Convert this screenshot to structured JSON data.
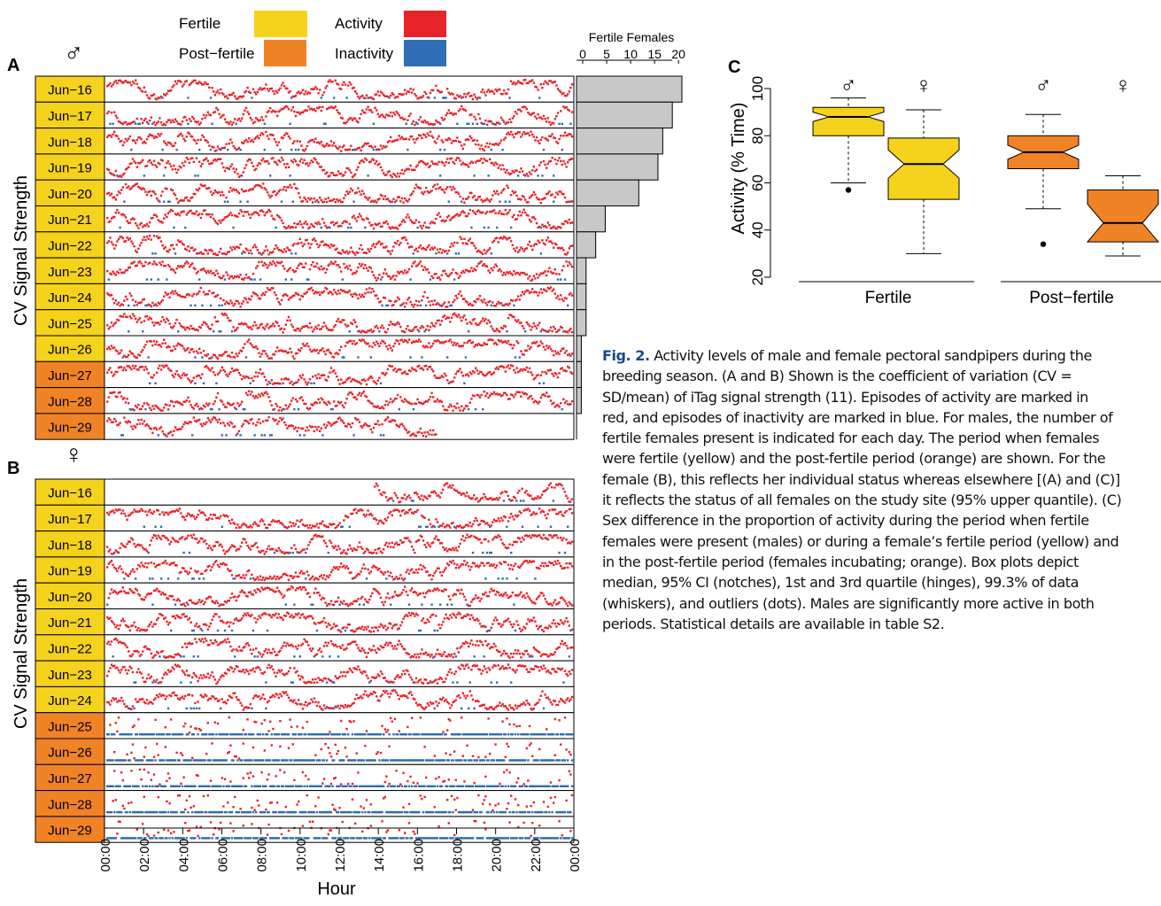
{
  "legend": {
    "fertile": "Fertile",
    "post_fertile": "Post−fertile",
    "activity": "Activity",
    "inactivity": "Inactivity",
    "colors": {
      "fertile": "#f5d21b",
      "post_fertile": "#f08326",
      "activity": "#e8232a",
      "inactivity": "#2f6db5"
    }
  },
  "panel_a": {
    "label": "A",
    "sex_symbol": "♂",
    "y_axis_label": "CV Signal Strength",
    "days": [
      "Jun−16",
      "Jun−17",
      "Jun−18",
      "Jun−19",
      "Jun−20",
      "Jun−21",
      "Jun−22",
      "Jun−23",
      "Jun−24",
      "Jun−25",
      "Jun−26",
      "Jun−27",
      "Jun−28",
      "Jun−29"
    ],
    "status": [
      "fertile",
      "fertile",
      "fertile",
      "fertile",
      "fertile",
      "fertile",
      "fertile",
      "fertile",
      "fertile",
      "fertile",
      "fertile",
      "post_fertile",
      "post_fertile",
      "post_fertile"
    ]
  },
  "fertile_females_chart": {
    "title": "Fertile Females",
    "ticks": [
      "0",
      "5",
      "10",
      "15",
      "20"
    ],
    "tick_values": [
      0,
      5,
      10,
      15,
      20
    ],
    "xlim": [
      0,
      22
    ],
    "values": [
      22,
      20,
      18,
      17,
      13,
      6,
      4,
      2,
      2,
      2,
      1,
      1,
      1,
      0
    ]
  },
  "panel_b": {
    "label": "B",
    "sex_symbol": "♀",
    "y_axis_label": "CV Signal Strength",
    "days": [
      "Jun−16",
      "Jun−17",
      "Jun−18",
      "Jun−19",
      "Jun−20",
      "Jun−21",
      "Jun−22",
      "Jun−23",
      "Jun−24",
      "Jun−25",
      "Jun−26",
      "Jun−27",
      "Jun−28",
      "Jun−29"
    ],
    "status": [
      "fertile",
      "fertile",
      "fertile",
      "fertile",
      "fertile",
      "fertile",
      "fertile",
      "fertile",
      "fertile",
      "post_fertile",
      "post_fertile",
      "post_fertile",
      "post_fertile",
      "post_fertile"
    ],
    "x_axis_label": "Hour",
    "hour_ticks": [
      "00:00",
      "02:00",
      "04:00",
      "06:00",
      "08:00",
      "10:00",
      "12:00",
      "14:00",
      "16:00",
      "18:00",
      "20:00",
      "22:00",
      "00:00"
    ]
  },
  "chart_data": {
    "type": "box",
    "label": "C",
    "ylabel": "Activity (% Time)",
    "yticks": [
      "20",
      "40",
      "60",
      "80",
      "100"
    ],
    "ylim": [
      20,
      100
    ],
    "groups": [
      "Fertile",
      "Post−fertile"
    ],
    "boxes": [
      {
        "group": "Fertile",
        "sex": "♂",
        "color": "#f5d21b",
        "whisker_low": 60,
        "q1": 80,
        "median": 88,
        "q3": 92,
        "whisker_high": 96,
        "notch_low": 86,
        "notch_high": 90,
        "outliers": [
          57
        ]
      },
      {
        "group": "Fertile",
        "sex": "♀",
        "color": "#f5d21b",
        "whisker_low": 30,
        "q1": 53,
        "median": 68,
        "q3": 79,
        "whisker_high": 91,
        "notch_low": 62,
        "notch_high": 74,
        "outliers": []
      },
      {
        "group": "Post−fertile",
        "sex": "♂",
        "color": "#f08326",
        "whisker_low": 49,
        "q1": 66,
        "median": 73,
        "q3": 80,
        "whisker_high": 89,
        "notch_low": 70,
        "notch_high": 76,
        "outliers": [
          34
        ]
      },
      {
        "group": "Post−fertile",
        "sex": "♀",
        "color": "#f08326",
        "whisker_low": 29,
        "q1": 35,
        "median": 43,
        "q3": 57,
        "whisker_high": 63,
        "notch_low": 35,
        "notch_high": 51,
        "outliers": []
      }
    ]
  },
  "caption": {
    "fig_label": "Fig. 2.",
    "line1": "Activity levels of male and female pectoral sandpipers during the",
    "line2": "breeding season. (A and B) Shown is the coefficient of variation (CV =",
    "line3": "SD/mean) of iTag signal strength (11). Episodes of activity are marked in",
    "line4": "red, and episodes of inactivity are marked in blue. For males, the number of",
    "line5": "fertile females present is indicated for each day. The period when females",
    "line6": "were fertile (yellow) and the post-fertile period (orange) are shown. For the",
    "line7": "female (B), this reflects her individual status whereas elsewhere [(A) and (C)]",
    "line8": "it reflects the status of all females on the study site (95% upper quantile). (C)",
    "line9": "Sex difference in the proportion of activity during the period when fertile",
    "line10": "females were present (males) or during a female’s fertile period (yellow) and",
    "line11": "in the post-fertile period (females incubating; orange). Box plots depict",
    "line12": "median, 95% CI (notches), 1st and 3rd quartile (hinges), 99.3% of data",
    "line13": "(whiskers), and outliers (dots). Males are significantly more active in both",
    "line14": "periods. Statistical details are available in table S2."
  }
}
